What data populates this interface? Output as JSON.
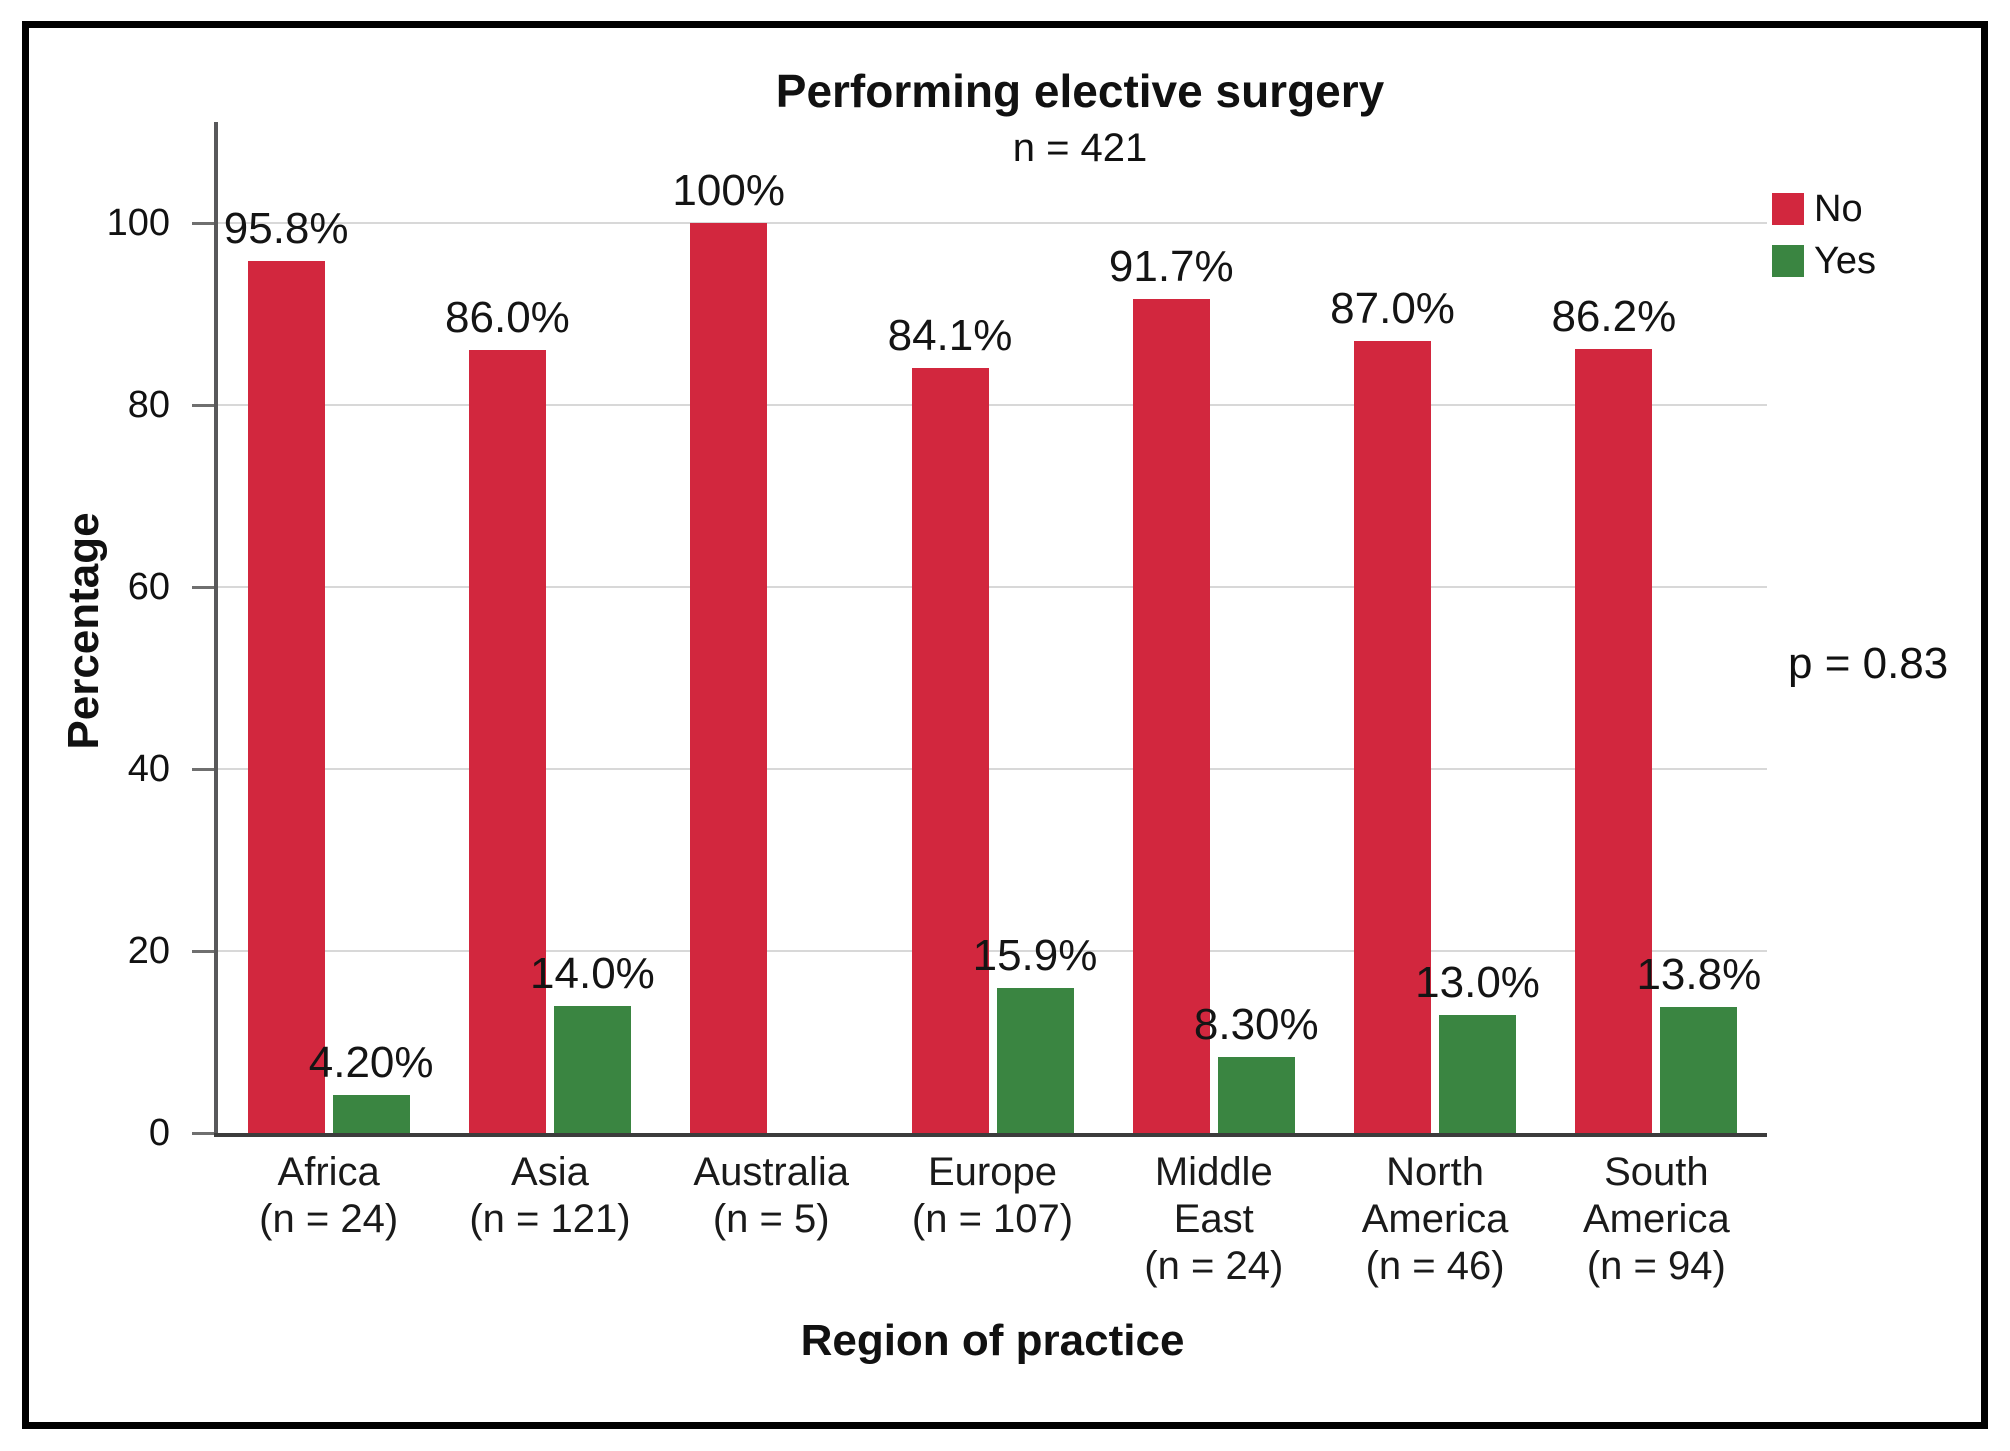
{
  "chart_data": {
    "type": "bar",
    "title": "Performing elective surgery",
    "subtitle": "n = 421",
    "xlabel": "Region of practice",
    "ylabel": "Percentage",
    "ylim": [
      0,
      111
    ],
    "yticks": [
      0,
      20,
      40,
      60,
      80,
      100
    ],
    "grid": true,
    "legend_position": "top-right",
    "annotation": "p = 0.83",
    "categories": [
      {
        "label": "Africa\n(n = 24)"
      },
      {
        "label": "Asia\n(n = 121)"
      },
      {
        "label": "Australia\n(n = 5)"
      },
      {
        "label": "Europe\n(n = 107)"
      },
      {
        "label": "Middle\nEast\n(n = 24)"
      },
      {
        "label": "North\nAmerica\n(n = 46)"
      },
      {
        "label": "South\nAmerica\n(n = 94)"
      }
    ],
    "series": [
      {
        "name": "No",
        "color": "#d2273e",
        "values": [
          95.8,
          86.0,
          100,
          84.1,
          91.7,
          87.0,
          86.2
        ],
        "value_labels": [
          "95.8%",
          "86.0%",
          "100%",
          "84.1%",
          "91.7%",
          "87.0%",
          "86.2%"
        ]
      },
      {
        "name": "Yes",
        "color": "#3a8541",
        "values": [
          4.2,
          14.0,
          null,
          15.9,
          8.3,
          13.0,
          13.8
        ],
        "value_labels": [
          "4.20%",
          "14.0%",
          null,
          "15.9%",
          "8.30%",
          "13.0%",
          "13.8%"
        ]
      }
    ]
  }
}
